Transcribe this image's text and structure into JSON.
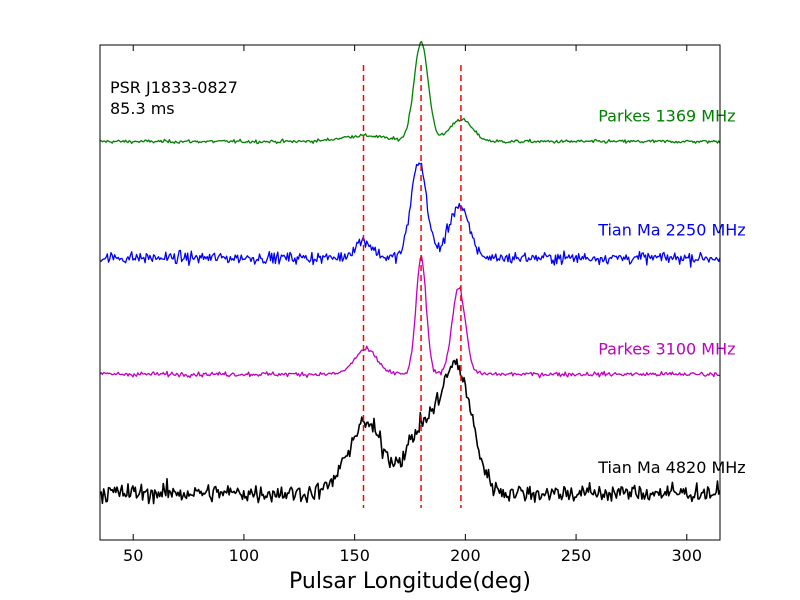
{
  "chart_data": {
    "type": "line",
    "title": "",
    "xlabel": "Pulsar Longitude(deg)",
    "ylabel": "",
    "xlim": [
      35,
      315
    ],
    "ylim": [
      0,
      10
    ],
    "x_ticks": [
      50,
      100,
      150,
      200,
      250,
      300
    ],
    "x_tick_labels": [
      "50",
      "100",
      "150",
      "200",
      "250",
      "300"
    ],
    "y_ticks_shown": false,
    "annotation": {
      "line1": "PSR J1833-0827",
      "line2": "85.3 ms"
    },
    "vlines": {
      "x": [
        154,
        180,
        198
      ],
      "color": "#ff0000",
      "style": "dashed"
    },
    "series": [
      {
        "name": "Parkes 1369 MHz",
        "color": "#008000",
        "baseline": 8.05,
        "noise": 0.03,
        "label_x": 260,
        "label_y": 8.45,
        "components": [
          {
            "center": 154,
            "height": 0.12,
            "width": 10
          },
          {
            "center": 180,
            "height": 2.0,
            "width": 3.2
          },
          {
            "center": 198,
            "height": 0.45,
            "width": 5
          }
        ]
      },
      {
        "name": "Tian Ma 2250 MHz",
        "color": "#0000ff",
        "baseline": 5.7,
        "noise": 0.1,
        "label_x": 260,
        "label_y": 6.15,
        "components": [
          {
            "center": 154,
            "height": 0.35,
            "width": 4
          },
          {
            "center": 179,
            "height": 1.95,
            "width": 3.5
          },
          {
            "center": 197,
            "height": 1.05,
            "width": 4.5
          }
        ]
      },
      {
        "name": "Parkes 3100 MHz",
        "color": "#c000c0",
        "baseline": 3.35,
        "noise": 0.04,
        "label_x": 260,
        "label_y": 3.75,
        "components": [
          {
            "center": 155,
            "height": 0.5,
            "width": 5
          },
          {
            "center": 180,
            "height": 2.35,
            "width": 2.3
          },
          {
            "center": 197,
            "height": 1.75,
            "width": 3
          }
        ]
      },
      {
        "name": "Tian Ma 4820 MHz",
        "color": "#000000",
        "baseline": 0.95,
        "noise": 0.16,
        "label_x": 260,
        "label_y": 1.35,
        "components": [
          {
            "center": 155,
            "height": 1.4,
            "width": 8
          },
          {
            "center": 180,
            "height": 1.2,
            "width": 7
          },
          {
            "center": 196,
            "height": 2.5,
            "width": 7
          }
        ]
      }
    ]
  }
}
